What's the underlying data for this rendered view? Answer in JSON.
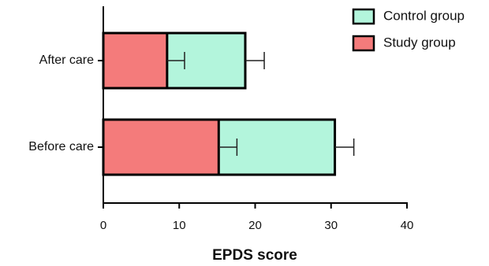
{
  "chart_data": {
    "type": "bar",
    "orientation": "horizontal",
    "layout": "overlap",
    "categories": [
      "After care",
      "Before care"
    ],
    "series": [
      {
        "name": "Control group",
        "color": "#b3f5dc",
        "values": [
          18.7,
          30.5
        ],
        "errors": [
          2.5,
          2.5
        ]
      },
      {
        "name": "Study group",
        "color": "#f47b7b",
        "values": [
          8.4,
          15.2
        ],
        "errors": [
          2.3,
          2.4
        ]
      }
    ],
    "xlim": [
      0,
      40
    ],
    "xticks": [
      0,
      10,
      20,
      30,
      40
    ],
    "xlabel": "EPDS score",
    "legend": "top-right"
  }
}
